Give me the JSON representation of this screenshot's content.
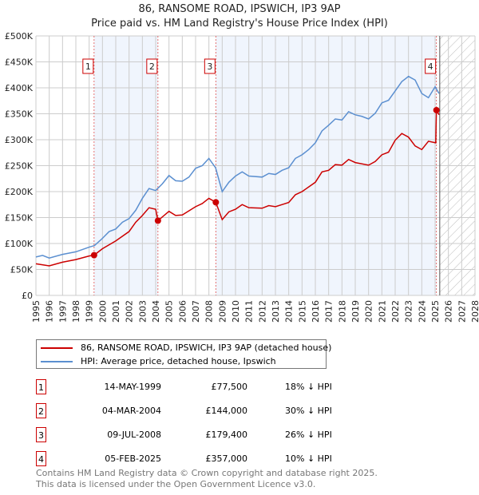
{
  "chart_data": {
    "type": "line",
    "title": "86, RANSOME ROAD, IPSWICH, IP3 9AP",
    "subtitle": "Price paid vs. HM Land Registry's House Price Index (HPI)",
    "xlim": [
      1995,
      2028
    ],
    "ylim": [
      0,
      500000
    ],
    "yticks": [
      0,
      50000,
      100000,
      150000,
      200000,
      250000,
      300000,
      350000,
      400000,
      450000,
      500000
    ],
    "ytick_labels": [
      "£0",
      "£50K",
      "£100K",
      "£150K",
      "£200K",
      "£250K",
      "£300K",
      "£350K",
      "£400K",
      "£450K",
      "£500K"
    ],
    "xticks": [
      1995,
      1996,
      1997,
      1998,
      1999,
      2000,
      2001,
      2002,
      2003,
      2004,
      2005,
      2006,
      2007,
      2008,
      2009,
      2010,
      2011,
      2012,
      2013,
      2014,
      2015,
      2016,
      2017,
      2018,
      2019,
      2020,
      2021,
      2022,
      2023,
      2024,
      2025,
      2026,
      2027,
      2028
    ],
    "grid": true,
    "data_end": 2025.35,
    "series": [
      {
        "name": "86, RANSOME ROAD, IPSWICH, IP3 9AP (detached house)",
        "color": "#cc0000",
        "x": [
          1995,
          1996,
          1997,
          1998,
          1999,
          1999.37,
          2000,
          2001,
          2002,
          2002.5,
          2003,
          2003.5,
          2004,
          2004.17,
          2005,
          2005.5,
          2006,
          2007,
          2007.5,
          2008,
          2008.52,
          2009,
          2009.5,
          2010,
          2010.5,
          2011,
          2012,
          2012.5,
          2013,
          2014,
          2014.5,
          2015,
          2016,
          2016.5,
          2017,
          2017.5,
          2018,
          2018.5,
          2019,
          2020,
          2020.5,
          2021,
          2021.5,
          2022,
          2022.5,
          2023,
          2023.5,
          2024,
          2024.5,
          2025.05,
          2025.1,
          2025.3
        ],
        "y": [
          61000,
          57000,
          64000,
          69000,
          76000,
          77500,
          90000,
          105000,
          123000,
          141000,
          154000,
          169000,
          166000,
          144000,
          162000,
          154000,
          155000,
          171000,
          177000,
          187000,
          179400,
          146000,
          161000,
          166000,
          175000,
          169000,
          168000,
          173000,
          171000,
          179000,
          194000,
          200000,
          218000,
          238000,
          241000,
          252000,
          251000,
          262000,
          256000,
          251000,
          258000,
          271000,
          276000,
          299000,
          312000,
          305000,
          288000,
          281000,
          297000,
          294000,
          357000,
          348000
        ]
      },
      {
        "name": "HPI: Average price, detached house, Ipswich",
        "color": "#5b8fd0",
        "x": [
          1995,
          1995.5,
          1996,
          1997,
          1998,
          1999,
          1999.4,
          2000,
          2000.5,
          2001,
          2001.5,
          2002,
          2002.5,
          2003,
          2003.5,
          2004,
          2004.5,
          2005,
          2005.5,
          2006,
          2006.5,
          2007,
          2007.5,
          2008,
          2008.5,
          2009,
          2009.5,
          2010,
          2010.5,
          2011,
          2012,
          2012.5,
          2013,
          2013.5,
          2014,
          2014.5,
          2015,
          2015.5,
          2016,
          2016.5,
          2017,
          2017.5,
          2018,
          2018.5,
          2019,
          2019.5,
          2020,
          2020.5,
          2021,
          2021.5,
          2022,
          2022.5,
          2023,
          2023.5,
          2024,
          2024.5,
          2025,
          2025.3
        ],
        "y": [
          74000,
          77000,
          72000,
          79000,
          84000,
          93000,
          96000,
          110000,
          123000,
          128000,
          141000,
          148000,
          164000,
          187000,
          206000,
          202000,
          215000,
          231000,
          221000,
          220000,
          228000,
          245000,
          250000,
          264000,
          246000,
          200000,
          218000,
          230000,
          238000,
          230000,
          228000,
          235000,
          233000,
          241000,
          246000,
          264000,
          271000,
          281000,
          294000,
          317000,
          328000,
          340000,
          338000,
          354000,
          348000,
          345000,
          340000,
          351000,
          371000,
          376000,
          394000,
          412000,
          422000,
          415000,
          389000,
          381000,
          402000,
          389000
        ]
      }
    ],
    "sales": [
      {
        "n": "1",
        "x": 1999.37,
        "y": 77500,
        "date": "14-MAY-1999",
        "price": "£77,500",
        "hpi": "18% ↓ HPI"
      },
      {
        "n": "2",
        "x": 2004.17,
        "y": 144000,
        "date": "04-MAR-2004",
        "price": "£144,000",
        "hpi": "30% ↓ HPI"
      },
      {
        "n": "3",
        "x": 2008.52,
        "y": 179400,
        "date": "09-JUL-2008",
        "price": "£179,400",
        "hpi": "26% ↓ HPI"
      },
      {
        "n": "4",
        "x": 2025.1,
        "y": 357000,
        "date": "05-FEB-2025",
        "price": "£357,000",
        "hpi": "10% ↓ HPI"
      }
    ]
  },
  "footer": [
    "Contains HM Land Registry data © Crown copyright and database right 2025.",
    "This data is licensed under the Open Government Licence v3.0."
  ]
}
